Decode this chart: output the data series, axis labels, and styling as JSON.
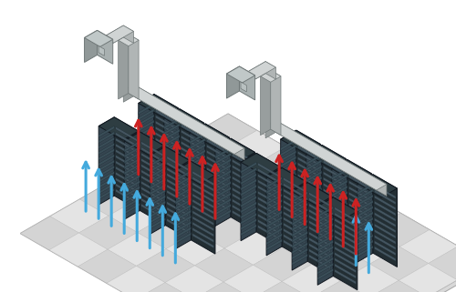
{
  "bg_color": "#ffffff",
  "floor_top_color": "#e8e8e8",
  "floor_front_color": "#c8c8c8",
  "floor_side_color": "#d8d8d8",
  "floor_edge_color": "#aaaaaa",
  "tile_a": "#d4d4d4",
  "tile_b": "#e4e4e4",
  "rack_top": "#2e3d42",
  "rack_front": "#232e33",
  "rack_side": "#354550",
  "rack_stripe_front": "#445560",
  "rack_stripe_side": "#3a4e58",
  "rack_edge": "#111820",
  "duct_top": "#d0d4d4",
  "duct_front": "#b0b5b5",
  "duct_side": "#989e9e",
  "duct_edge": "#707878",
  "unit_top": "#c0c8c8",
  "unit_front": "#a8b0b0",
  "unit_side": "#909898",
  "unit_edge": "#707878",
  "hot_color": "#cc2222",
  "cold_color": "#44aadd",
  "ox": 250,
  "oy": 185,
  "scale": 36
}
